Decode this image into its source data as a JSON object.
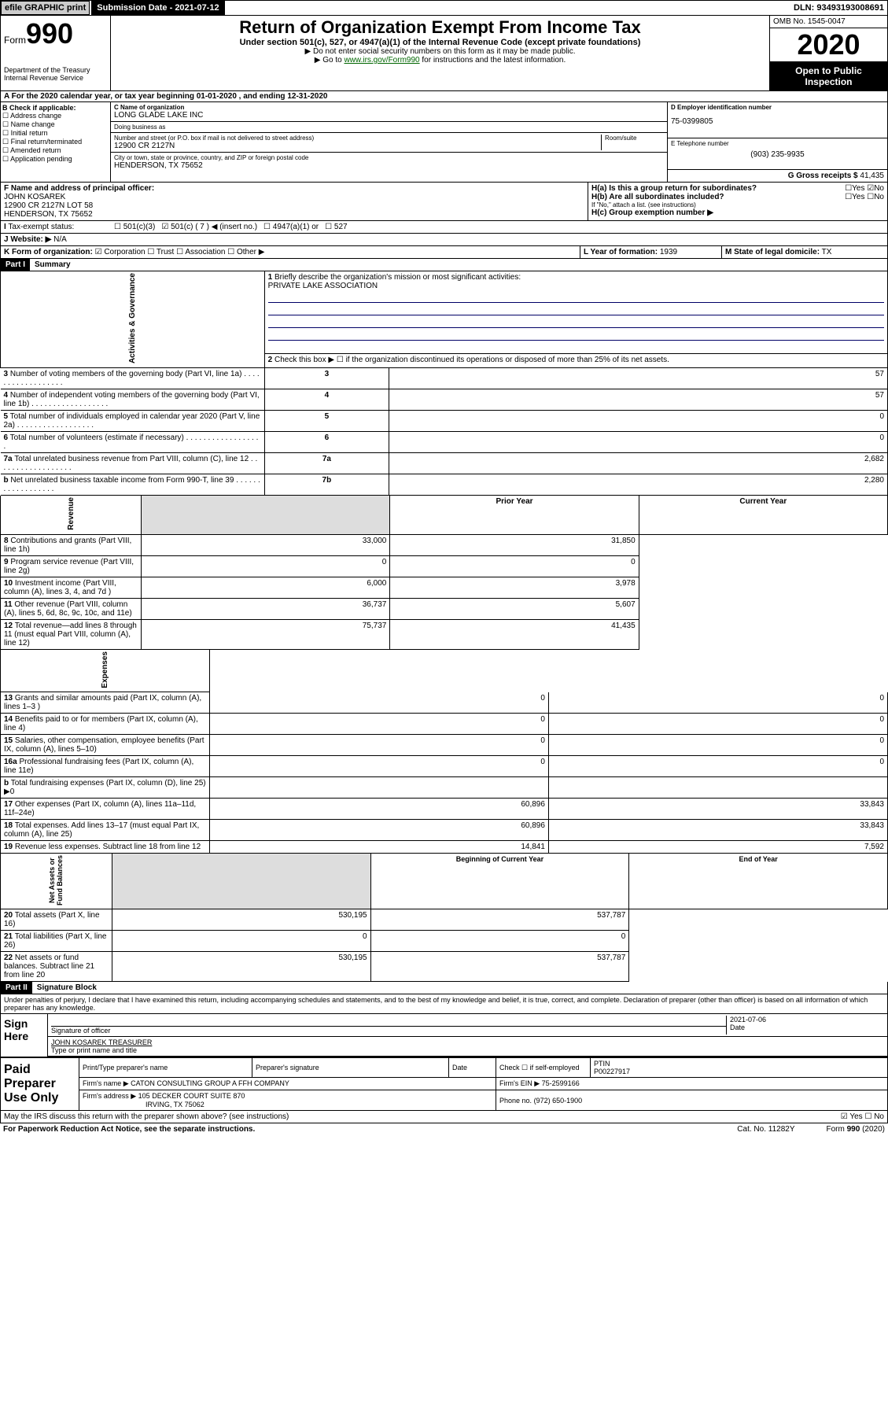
{
  "top": {
    "efile": "efile GRAPHIC print",
    "submission": "Submission Date - 2021-07-12",
    "dln": "DLN: 93493193008691"
  },
  "header": {
    "form_prefix": "Form",
    "form_num": "990",
    "dept": "Department of the Treasury\nInternal Revenue Service",
    "title": "Return of Organization Exempt From Income Tax",
    "subtitle": "Under section 501(c), 527, or 4947(a)(1) of the Internal Revenue Code (except private foundations)",
    "instr1": "▶ Do not enter social security numbers on this form as it may be made public.",
    "instr2_pre": "▶ Go to ",
    "instr2_link": "www.irs.gov/Form990",
    "instr2_post": " for instructions and the latest information.",
    "omb": "OMB No. 1545-0047",
    "year": "2020",
    "open": "Open to Public Inspection"
  },
  "tax_year": "A For the 2020 calendar year, or tax year beginning 01-01-2020   , and ending 12-31-2020",
  "checkB": {
    "label": "B Check if applicable:",
    "opts": [
      "Address change",
      "Name change",
      "Initial return",
      "Final return/terminated",
      "Amended return",
      "Application pending"
    ]
  },
  "org": {
    "c_label": "C Name of organization",
    "name": "LONG GLADE LAKE INC",
    "dba_label": "Doing business as",
    "addr_label": "Number and street (or P.O. box if mail is not delivered to street address)",
    "room_label": "Room/suite",
    "addr": "12900 CR 2127N",
    "city_label": "City or town, state or province, country, and ZIP or foreign postal code",
    "city": "HENDERSON, TX  75652"
  },
  "right": {
    "d_label": "D Employer identification number",
    "ein": "75-0399805",
    "e_label": "E Telephone number",
    "phone": "(903) 235-9935",
    "g_label": "G Gross receipts $",
    "gross": "41,435"
  },
  "f": {
    "label": "F  Name and address of principal officer:",
    "name": "JOHN KOSAREK",
    "addr1": "12900 CR 2127N LOT 58",
    "addr2": "HENDERSON, TX  75652"
  },
  "h": {
    "a": "H(a)  Is this a group return for subordinates?",
    "b": "H(b)  Are all subordinates included?",
    "b_note": "If \"No,\" attach a list. (see instructions)",
    "c": "H(c)  Group exemption number ▶"
  },
  "status": {
    "label": "Tax-exempt status:",
    "opts": [
      "501(c)(3)",
      "501(c) ( 7 ) ◀ (insert no.)",
      "4947(a)(1) or",
      "527"
    ]
  },
  "website": {
    "label": "J Website: ▶",
    "value": "N/A"
  },
  "k": {
    "label": "K Form of organization:",
    "opts": [
      "Corporation",
      "Trust",
      "Association",
      "Other ▶"
    ]
  },
  "l": {
    "label": "L Year of formation:",
    "value": "1939"
  },
  "m": {
    "label": "M State of legal domicile:",
    "value": "TX"
  },
  "part1": {
    "header": "Part I",
    "title": "Summary",
    "q1": "Briefly describe the organization's mission or most significant activities:",
    "mission": "PRIVATE LAKE ASSOCIATION",
    "q2": "Check this box ▶ ☐  if the organization discontinued its operations or disposed of more than 25% of its net assets.",
    "rows_gov": [
      {
        "n": "3",
        "t": "Number of voting members of the governing body (Part VI, line 1a)",
        "box": "3",
        "v": "57"
      },
      {
        "n": "4",
        "t": "Number of independent voting members of the governing body (Part VI, line 1b)",
        "box": "4",
        "v": "57"
      },
      {
        "n": "5",
        "t": "Total number of individuals employed in calendar year 2020 (Part V, line 2a)",
        "box": "5",
        "v": "0"
      },
      {
        "n": "6",
        "t": "Total number of volunteers (estimate if necessary)",
        "box": "6",
        "v": "0"
      },
      {
        "n": "7a",
        "t": "Total unrelated business revenue from Part VIII, column (C), line 12",
        "box": "7a",
        "v": "2,682"
      },
      {
        "n": "b",
        "t": "Net unrelated business taxable income from Form 990-T, line 39",
        "box": "7b",
        "v": "2,280"
      }
    ],
    "col_headers": {
      "prior": "Prior Year",
      "current": "Current Year"
    },
    "rows_rev": [
      {
        "n": "8",
        "t": "Contributions and grants (Part VIII, line 1h)",
        "p": "33,000",
        "c": "31,850"
      },
      {
        "n": "9",
        "t": "Program service revenue (Part VIII, line 2g)",
        "p": "0",
        "c": "0"
      },
      {
        "n": "10",
        "t": "Investment income (Part VIII, column (A), lines 3, 4, and 7d )",
        "p": "6,000",
        "c": "3,978"
      },
      {
        "n": "11",
        "t": "Other revenue (Part VIII, column (A), lines 5, 6d, 8c, 9c, 10c, and 11e)",
        "p": "36,737",
        "c": "5,607"
      },
      {
        "n": "12",
        "t": "Total revenue—add lines 8 through 11 (must equal Part VIII, column (A), line 12)",
        "p": "75,737",
        "c": "41,435"
      }
    ],
    "rows_exp": [
      {
        "n": "13",
        "t": "Grants and similar amounts paid (Part IX, column (A), lines 1–3 )",
        "p": "0",
        "c": "0"
      },
      {
        "n": "14",
        "t": "Benefits paid to or for members (Part IX, column (A), line 4)",
        "p": "0",
        "c": "0"
      },
      {
        "n": "15",
        "t": "Salaries, other compensation, employee benefits (Part IX, column (A), lines 5–10)",
        "p": "0",
        "c": "0"
      },
      {
        "n": "16a",
        "t": "Professional fundraising fees (Part IX, column (A), line 11e)",
        "p": "0",
        "c": "0"
      },
      {
        "n": "b",
        "t": "Total fundraising expenses (Part IX, column (D), line 25) ▶0",
        "p": "",
        "c": "",
        "grey": true
      },
      {
        "n": "17",
        "t": "Other expenses (Part IX, column (A), lines 11a–11d, 11f–24e)",
        "p": "60,896",
        "c": "33,843"
      },
      {
        "n": "18",
        "t": "Total expenses. Add lines 13–17 (must equal Part IX, column (A), line 25)",
        "p": "60,896",
        "c": "33,843"
      },
      {
        "n": "19",
        "t": "Revenue less expenses. Subtract line 18 from line 12",
        "p": "14,841",
        "c": "7,592"
      }
    ],
    "col_headers2": {
      "begin": "Beginning of Current Year",
      "end": "End of Year"
    },
    "rows_net": [
      {
        "n": "20",
        "t": "Total assets (Part X, line 16)",
        "p": "530,195",
        "c": "537,787"
      },
      {
        "n": "21",
        "t": "Total liabilities (Part X, line 26)",
        "p": "0",
        "c": "0"
      },
      {
        "n": "22",
        "t": "Net assets or fund balances. Subtract line 21 from line 20",
        "p": "530,195",
        "c": "537,787"
      }
    ]
  },
  "part2": {
    "header": "Part II",
    "title": "Signature Block",
    "penalty": "Under penalties of perjury, I declare that I have examined this return, including accompanying schedules and statements, and to the best of my knowledge and belief, it is true, correct, and complete. Declaration of preparer (other than officer) is based on all information of which preparer has any knowledge.",
    "sign_here": "Sign Here",
    "sig_officer": "Signature of officer",
    "sig_date": "2021-07-06",
    "date_label": "Date",
    "officer_name": "JOHN KOSAREK  TREASURER",
    "type_name": "Type or print name and title",
    "paid_prep": "Paid Preparer Use Only",
    "prep_name_label": "Print/Type preparer's name",
    "prep_sig_label": "Preparer's signature",
    "prep_date_label": "Date",
    "self_emp": "Check ☐ if self-employed",
    "ptin_label": "PTIN",
    "ptin": "P00227917",
    "firm_name_label": "Firm's name    ▶",
    "firm_name": "CATON CONSULTING GROUP A FFH COMPANY",
    "firm_ein_label": "Firm's EIN ▶",
    "firm_ein": "75-2599166",
    "firm_addr_label": "Firm's address ▶",
    "firm_addr": "105 DECKER COURT SUITE 870",
    "firm_city": "IRVING, TX  75062",
    "firm_phone_label": "Phone no.",
    "firm_phone": "(972) 650-1900",
    "discuss": "May the IRS discuss this return with the preparer shown above? (see instructions)",
    "yes": "Yes",
    "no": "No"
  },
  "footer": {
    "paperwork": "For Paperwork Reduction Act Notice, see the separate instructions.",
    "cat": "Cat. No. 11282Y",
    "form": "Form 990 (2020)"
  }
}
